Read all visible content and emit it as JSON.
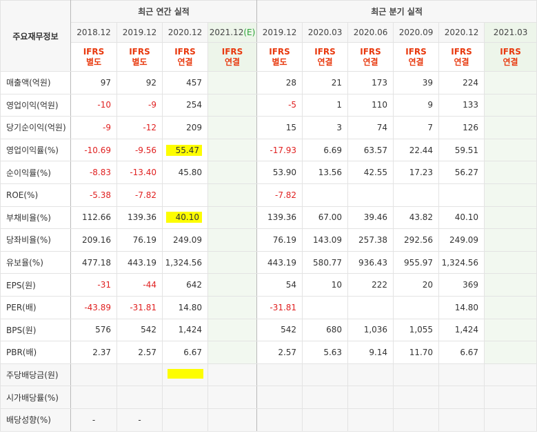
{
  "header": {
    "label": "주요재무정보",
    "annual_group": "최근 연간 실적",
    "quarter_group": "최근 분기 실적",
    "annual_periods": [
      "2018.12",
      "2019.12",
      "2020.12",
      "2021.12"
    ],
    "estimate_mark": "(E)",
    "quarter_periods": [
      "2019.12",
      "2020.03",
      "2020.06",
      "2020.09",
      "2020.12",
      "2021.03"
    ],
    "annual_ifrs": [
      [
        "IFRS",
        "별도"
      ],
      [
        "IFRS",
        "별도"
      ],
      [
        "IFRS",
        "연결"
      ],
      [
        "IFRS",
        "연결"
      ]
    ],
    "quarter_ifrs": [
      [
        "IFRS",
        "별도"
      ],
      [
        "IFRS",
        "연결"
      ],
      [
        "IFRS",
        "연결"
      ],
      [
        "IFRS",
        "연결"
      ],
      [
        "IFRS",
        "연결"
      ],
      [
        "IFRS",
        "연결"
      ]
    ]
  },
  "rows": [
    {
      "label": "매출액(억원)",
      "annual": [
        "97",
        "92",
        "457",
        ""
      ],
      "quarter": [
        "28",
        "21",
        "173",
        "39",
        "224",
        ""
      ]
    },
    {
      "label": "영업이익(억원)",
      "annual": [
        "-10",
        "-9",
        "254",
        ""
      ],
      "quarter": [
        "-5",
        "1",
        "110",
        "9",
        "133",
        ""
      ]
    },
    {
      "label": "당기순이익(억원)",
      "annual": [
        "-9",
        "-12",
        "209",
        ""
      ],
      "quarter": [
        "15",
        "3",
        "74",
        "7",
        "126",
        ""
      ]
    },
    {
      "label": "영업이익률(%)",
      "annual": [
        "-10.69",
        "-9.56",
        "55.47",
        ""
      ],
      "quarter": [
        "-17.93",
        "6.69",
        "63.57",
        "22.44",
        "59.51",
        ""
      ]
    },
    {
      "label": "순이익률(%)",
      "annual": [
        "-8.83",
        "-13.40",
        "45.80",
        ""
      ],
      "quarter": [
        "53.90",
        "13.56",
        "42.55",
        "17.23",
        "56.27",
        ""
      ]
    },
    {
      "label": "ROE(%)",
      "annual": [
        "-5.38",
        "-7.82",
        "",
        ""
      ],
      "quarter": [
        "-7.82",
        "",
        "",
        "",
        "",
        ""
      ]
    },
    {
      "label": "부채비율(%)",
      "annual": [
        "112.66",
        "139.36",
        "40.10",
        ""
      ],
      "quarter": [
        "139.36",
        "67.00",
        "39.46",
        "43.82",
        "40.10",
        ""
      ]
    },
    {
      "label": "당좌비율(%)",
      "annual": [
        "209.16",
        "76.19",
        "249.09",
        ""
      ],
      "quarter": [
        "76.19",
        "143.09",
        "257.38",
        "292.56",
        "249.09",
        ""
      ]
    },
    {
      "label": "유보율(%)",
      "annual": [
        "477.18",
        "443.19",
        "1,324.56",
        ""
      ],
      "quarter": [
        "443.19",
        "580.77",
        "936.43",
        "955.97",
        "1,324.56",
        ""
      ]
    },
    {
      "label": "EPS(원)",
      "annual": [
        "-31",
        "-44",
        "642",
        ""
      ],
      "quarter": [
        "54",
        "10",
        "222",
        "20",
        "369",
        ""
      ]
    },
    {
      "label": "PER(배)",
      "annual": [
        "-43.89",
        "-31.81",
        "14.80",
        ""
      ],
      "quarter": [
        "-31.81",
        "",
        "",
        "",
        "14.80",
        ""
      ]
    },
    {
      "label": "BPS(원)",
      "annual": [
        "576",
        "542",
        "1,424",
        ""
      ],
      "quarter": [
        "542",
        "680",
        "1,036",
        "1,055",
        "1,424",
        ""
      ]
    },
    {
      "label": "PBR(배)",
      "annual": [
        "2.37",
        "2.57",
        "6.67",
        ""
      ],
      "quarter": [
        "2.57",
        "5.63",
        "9.14",
        "11.70",
        "6.67",
        ""
      ]
    },
    {
      "label": "주당배당금(원)",
      "annual": [
        "",
        "",
        "",
        ""
      ],
      "quarter": [
        "",
        "",
        "",
        "",
        "",
        ""
      ]
    },
    {
      "label": "시가배당률(%)",
      "annual": [
        "",
        "",
        "",
        ""
      ],
      "quarter": [
        "",
        "",
        "",
        "",
        "",
        ""
      ]
    },
    {
      "label": "배당성향(%)",
      "annual": [
        "-",
        "-",
        "",
        ""
      ],
      "quarter": [
        "",
        "",
        "",
        "",
        "",
        ""
      ]
    }
  ],
  "highlights": {
    "color": "#fdfd00"
  },
  "colors": {
    "negative": "#e02020",
    "ifrs": "#e8380d",
    "estimate_bg": "#f2f8f0",
    "estimate_mark": "#2aa336"
  }
}
